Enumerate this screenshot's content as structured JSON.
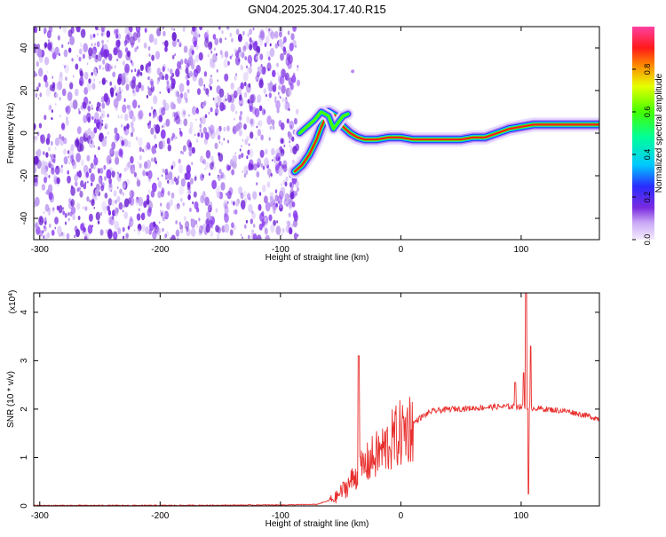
{
  "title": "GN04.2025.304.17.40.R15",
  "colors": {
    "signal_line": "#e8302e",
    "noise_purple": "#7a2be0",
    "axis": "#000000"
  },
  "chart_data": [
    {
      "type": "heatmap",
      "name": "spectrogram",
      "xlabel": "Height of straight line (km)",
      "ylabel": "Frequency (Hz)",
      "xlim": [
        -305,
        165
      ],
      "ylim": [
        -50,
        50
      ],
      "x_ticks": [
        "-300",
        "-200",
        "-100",
        "0",
        "100"
      ],
      "y_ticks": [
        "-40",
        "-20",
        "0",
        "20",
        "40"
      ],
      "noise_region_x": [
        -305,
        -85
      ],
      "signal_track": [
        [
          -88,
          -18
        ],
        [
          -82,
          -15
        ],
        [
          -76,
          -10
        ],
        [
          -70,
          -3
        ],
        [
          -66,
          3
        ],
        [
          -60,
          10
        ],
        [
          -54,
          8
        ],
        [
          -48,
          3
        ],
        [
          -42,
          0
        ],
        [
          -36,
          -2
        ],
        [
          -30,
          -3
        ],
        [
          -20,
          -3
        ],
        [
          -10,
          -2
        ],
        [
          0,
          -2
        ],
        [
          10,
          -3
        ],
        [
          20,
          -3
        ],
        [
          30,
          -3
        ],
        [
          40,
          -3
        ],
        [
          50,
          -3
        ],
        [
          60,
          -2
        ],
        [
          70,
          -2
        ],
        [
          80,
          0
        ],
        [
          90,
          2
        ],
        [
          100,
          3
        ],
        [
          110,
          4
        ],
        [
          120,
          4
        ],
        [
          140,
          4
        ],
        [
          165,
          4
        ]
      ],
      "upper_branch": [
        [
          -84,
          0
        ],
        [
          -78,
          3
        ],
        [
          -72,
          6
        ],
        [
          -66,
          10
        ],
        [
          -60,
          8
        ],
        [
          -56,
          2
        ],
        [
          -52,
          5
        ],
        [
          -48,
          8
        ],
        [
          -44,
          9
        ]
      ],
      "colorbar": {
        "label": "Normalized spectral amplitude",
        "ticks": [
          "0.0",
          "0.2",
          "0.4",
          "0.6",
          "0.8"
        ],
        "range": [
          0,
          1
        ]
      }
    },
    {
      "type": "line",
      "name": "snr",
      "xlabel": "Height of straight line (km)",
      "ylabel": "SNR (10 * v/v)",
      "y_multiplier_label": "(x10",
      "y_multiplier_exp": "4",
      "xlim": [
        -305,
        165
      ],
      "ylim": [
        0,
        4.4
      ],
      "x_ticks": [
        "-300",
        "-200",
        "-100",
        "0",
        "100"
      ],
      "y_ticks": [
        "0",
        "1",
        "2",
        "3",
        "4"
      ],
      "envelope": [
        [
          -305,
          0.01
        ],
        [
          -200,
          0.01
        ],
        [
          -100,
          0.02
        ],
        [
          -70,
          0.03
        ],
        [
          -55,
          0.15
        ],
        [
          -45,
          0.4
        ],
        [
          -35,
          0.7
        ],
        [
          -25,
          0.95
        ],
        [
          -15,
          1.15
        ],
        [
          -5,
          1.4
        ],
        [
          5,
          1.6
        ],
        [
          15,
          1.8
        ],
        [
          25,
          1.95
        ],
        [
          40,
          2.0
        ],
        [
          60,
          2.02
        ],
        [
          80,
          2.05
        ],
        [
          100,
          2.05
        ],
        [
          120,
          2.0
        ],
        [
          140,
          1.95
        ],
        [
          165,
          1.8
        ]
      ],
      "spikes": [
        [
          -35,
          3.1
        ],
        [
          95,
          2.55
        ],
        [
          102,
          2.75
        ],
        [
          104,
          4.45
        ],
        [
          106,
          0.25
        ],
        [
          108,
          3.3
        ]
      ]
    }
  ]
}
